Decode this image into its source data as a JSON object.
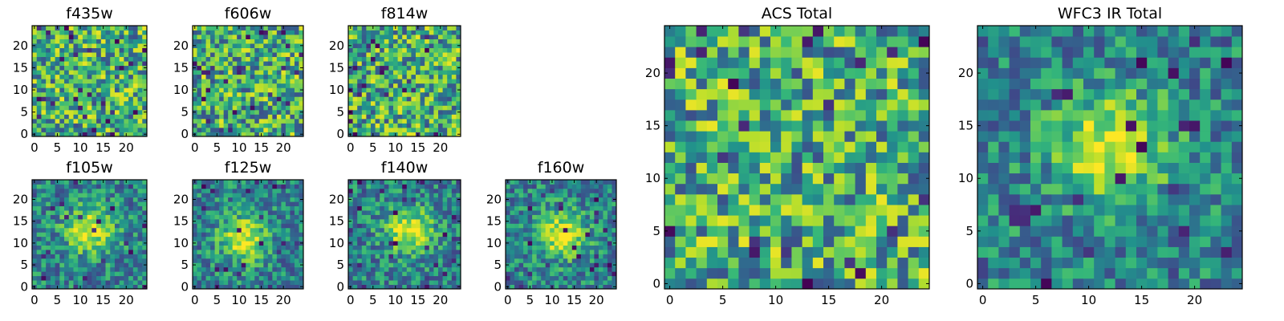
{
  "figure": {
    "background": "#ffffff"
  },
  "colormap": {
    "name": "viridis",
    "low": "#440154",
    "mid": "#21918c",
    "high": "#fde725"
  },
  "chart_data": [
    {
      "type": "heatmap",
      "title": "f435w",
      "grid": [
        25,
        25
      ],
      "xlim": [
        0,
        24
      ],
      "ylim": [
        0,
        24
      ],
      "xticks": [
        0,
        5,
        10,
        15,
        20
      ],
      "yticks": [
        0,
        5,
        10,
        15,
        20
      ],
      "pattern": "noise",
      "seed": 11
    },
    {
      "type": "heatmap",
      "title": "f606w",
      "grid": [
        25,
        25
      ],
      "xlim": [
        0,
        24
      ],
      "ylim": [
        0,
        24
      ],
      "xticks": [
        0,
        5,
        10,
        15,
        20
      ],
      "yticks": [
        0,
        5,
        10,
        15,
        20
      ],
      "pattern": "noise",
      "seed": 23
    },
    {
      "type": "heatmap",
      "title": "f814w",
      "grid": [
        25,
        25
      ],
      "xlim": [
        0,
        24
      ],
      "ylim": [
        0,
        24
      ],
      "xticks": [
        0,
        5,
        10,
        15,
        20
      ],
      "yticks": [
        0,
        5,
        10,
        15,
        20
      ],
      "pattern": "noise",
      "seed": 37
    },
    {
      "type": "heatmap",
      "title": "f105w",
      "grid": [
        25,
        25
      ],
      "xlim": [
        0,
        24
      ],
      "ylim": [
        0,
        24
      ],
      "xticks": [
        0,
        5,
        10,
        15,
        20
      ],
      "yticks": [
        0,
        5,
        10,
        15,
        20
      ],
      "pattern": "source",
      "source_center": [
        12,
        13
      ],
      "seed": 41
    },
    {
      "type": "heatmap",
      "title": "f125w",
      "grid": [
        25,
        25
      ],
      "xlim": [
        0,
        24
      ],
      "ylim": [
        0,
        24
      ],
      "xticks": [
        0,
        5,
        10,
        15,
        20
      ],
      "yticks": [
        0,
        5,
        10,
        15,
        20
      ],
      "pattern": "source",
      "source_center": [
        11,
        11
      ],
      "seed": 53
    },
    {
      "type": "heatmap",
      "title": "f140w",
      "grid": [
        25,
        25
      ],
      "xlim": [
        0,
        24
      ],
      "ylim": [
        0,
        24
      ],
      "xticks": [
        0,
        5,
        10,
        15,
        20
      ],
      "yticks": [
        0,
        5,
        10,
        15,
        20
      ],
      "pattern": "source",
      "source_center": [
        13,
        13
      ],
      "seed": 67
    },
    {
      "type": "heatmap",
      "title": "f160w",
      "grid": [
        25,
        25
      ],
      "xlim": [
        0,
        24
      ],
      "ylim": [
        0,
        24
      ],
      "xticks": [
        0,
        5,
        10,
        15,
        20
      ],
      "yticks": [
        0,
        5,
        10,
        15,
        20
      ],
      "pattern": "source",
      "source_center": [
        12,
        12
      ],
      "seed": 79
    },
    {
      "type": "heatmap",
      "title": "ACS Total",
      "grid": [
        25,
        25
      ],
      "xlim": [
        0,
        24
      ],
      "ylim": [
        0,
        24
      ],
      "xticks": [
        0,
        5,
        10,
        15,
        20
      ],
      "yticks": [
        0,
        5,
        10,
        15,
        20
      ],
      "pattern": "noise",
      "seed": 97
    },
    {
      "type": "heatmap",
      "title": "WFC3 IR Total",
      "grid": [
        25,
        25
      ],
      "xlim": [
        0,
        24
      ],
      "ylim": [
        0,
        24
      ],
      "xticks": [
        0,
        5,
        10,
        15,
        20
      ],
      "yticks": [
        0,
        5,
        10,
        15,
        20
      ],
      "pattern": "source",
      "source_center": [
        12,
        13
      ],
      "seed": 101
    }
  ]
}
